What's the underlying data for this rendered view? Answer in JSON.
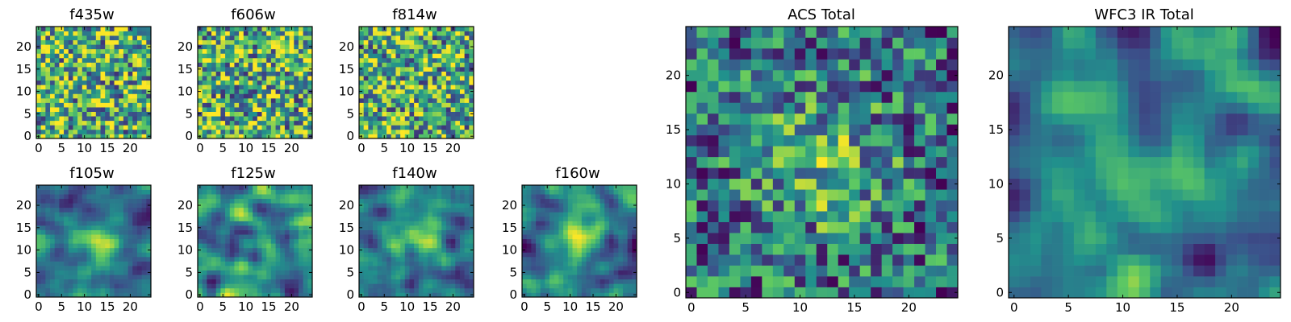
{
  "chart_data": {
    "type": "heatmap",
    "colormap": "viridis",
    "color_stops": [
      "#440154",
      "#3b528b",
      "#21918c",
      "#5ec962",
      "#fde725"
    ],
    "grid": false,
    "grid_size": [
      25,
      25
    ],
    "panels": [
      {
        "id": "f435w",
        "title": "f435w",
        "xticks": [
          "0",
          "5",
          "10",
          "15",
          "20"
        ],
        "yticks": [
          "0",
          "5",
          "10",
          "15",
          "20"
        ],
        "xlim": [
          -0.5,
          24.5
        ],
        "ylim": [
          -0.5,
          24.5
        ],
        "structure": "noise"
      },
      {
        "id": "f606w",
        "title": "f606w",
        "xticks": [
          "0",
          "5",
          "10",
          "15",
          "20"
        ],
        "yticks": [
          "0",
          "5",
          "10",
          "15",
          "20"
        ],
        "xlim": [
          -0.5,
          24.5
        ],
        "ylim": [
          -0.5,
          24.5
        ],
        "structure": "noise"
      },
      {
        "id": "f814w",
        "title": "f814w",
        "xticks": [
          "0",
          "5",
          "10",
          "15",
          "20"
        ],
        "yticks": [
          "0",
          "5",
          "10",
          "15",
          "20"
        ],
        "xlim": [
          -0.5,
          24.5
        ],
        "ylim": [
          -0.5,
          24.5
        ],
        "structure": "noise"
      },
      {
        "id": "f105w",
        "title": "f105w",
        "xticks": [
          "0",
          "5",
          "10",
          "15",
          "20"
        ],
        "yticks": [
          "0",
          "5",
          "10",
          "15",
          "20"
        ],
        "xlim": [
          -0.5,
          24.5
        ],
        "ylim": [
          -0.5,
          24.5
        ],
        "structure": "smooth-centered"
      },
      {
        "id": "f125w",
        "title": "f125w",
        "xticks": [
          "0",
          "5",
          "10",
          "15",
          "20"
        ],
        "yticks": [
          "0",
          "5",
          "10",
          "15",
          "20"
        ],
        "xlim": [
          -0.5,
          24.5
        ],
        "ylim": [
          -0.5,
          24.5
        ],
        "structure": "smooth"
      },
      {
        "id": "f140w",
        "title": "f140w",
        "xticks": [
          "0",
          "5",
          "10",
          "15",
          "20"
        ],
        "yticks": [
          "0",
          "5",
          "10",
          "15",
          "20"
        ],
        "xlim": [
          -0.5,
          24.5
        ],
        "ylim": [
          -0.5,
          24.5
        ],
        "structure": "smooth-centered"
      },
      {
        "id": "f160w",
        "title": "f160w",
        "xticks": [
          "0",
          "5",
          "10",
          "15",
          "20"
        ],
        "yticks": [
          "0",
          "5",
          "10",
          "15",
          "20"
        ],
        "xlim": [
          -0.5,
          24.5
        ],
        "ylim": [
          -0.5,
          24.5
        ],
        "structure": "smooth-centered"
      },
      {
        "id": "acs-total",
        "title": "ACS Total",
        "xticks": [
          "0",
          "5",
          "10",
          "15",
          "20"
        ],
        "yticks": [
          "0",
          "5",
          "10",
          "15",
          "20"
        ],
        "xlim": [
          -0.5,
          24.5
        ],
        "ylim": [
          -0.5,
          24.5
        ],
        "structure": "noise-centered"
      },
      {
        "id": "wfc3-ir-total",
        "title": "WFC3 IR Total",
        "xticks": [
          "0",
          "5",
          "10",
          "15",
          "20"
        ],
        "yticks": [
          "0",
          "5",
          "10",
          "15",
          "20"
        ],
        "xlim": [
          -0.5,
          24.5
        ],
        "ylim": [
          -0.5,
          24.5
        ],
        "structure": "smooth-centered"
      }
    ]
  }
}
